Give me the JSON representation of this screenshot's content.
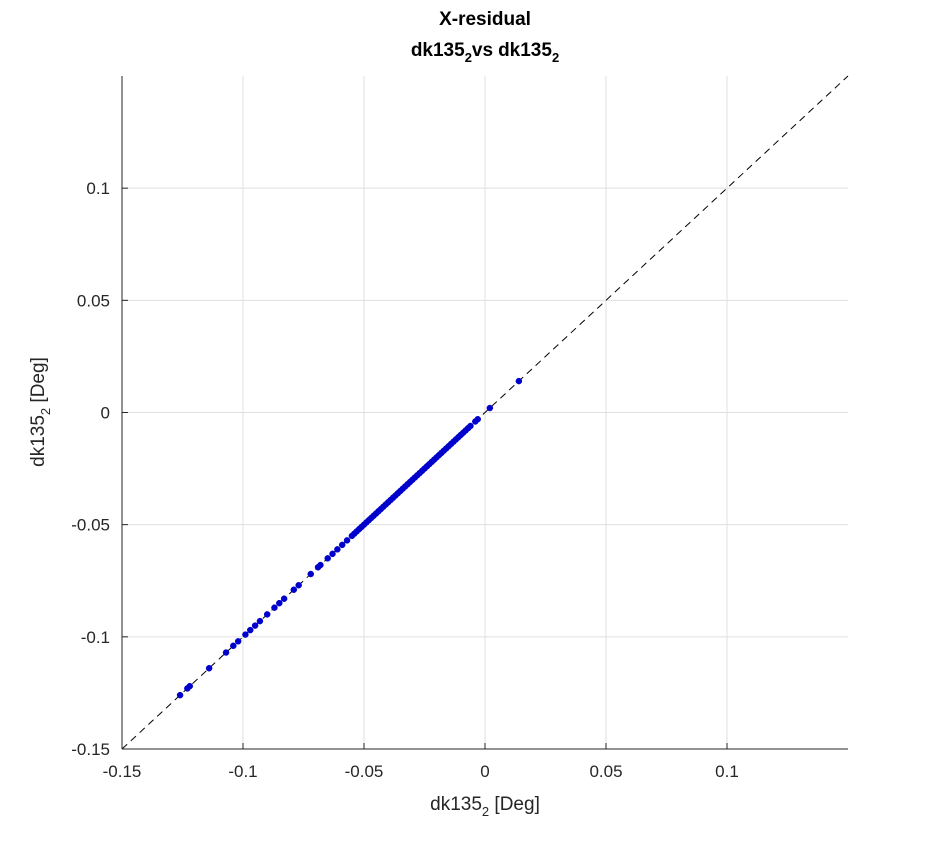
{
  "chart_data": {
    "type": "scatter",
    "title": "X-residual",
    "subtitle_parts": {
      "base1": "dk135",
      "sub1": "2",
      "mid": "vs",
      "base2": "dk135",
      "sub2": "2"
    },
    "xlabel_parts": {
      "base": "dk135",
      "sub": "2",
      "rest": " [Deg]"
    },
    "ylabel_parts": {
      "base": "dk135",
      "sub": "2",
      "rest": " [Deg]"
    },
    "xlim": [
      -0.15,
      0.15
    ],
    "ylim": [
      -0.15,
      0.15
    ],
    "xticks": [
      -0.15,
      -0.1,
      -0.05,
      0,
      0.05,
      0.1
    ],
    "yticks": [
      -0.15,
      -0.1,
      -0.05,
      0,
      0.05,
      0.1
    ],
    "xtick_labels": [
      "-0.15",
      "-0.1",
      "-0.05",
      "0",
      "0.05",
      "0.1"
    ],
    "ytick_labels": [
      "-0.15",
      "-0.1",
      "-0.05",
      "0",
      "0.05",
      "0.1"
    ],
    "grid": true,
    "reference_line": "y = x (dashed)",
    "point_color": "#0000cc",
    "dense_segment": {
      "from": -0.055,
      "to": -0.006,
      "step": 0.001
    },
    "points": [
      [
        -0.126,
        -0.126
      ],
      [
        -0.123,
        -0.123
      ],
      [
        -0.122,
        -0.122
      ],
      [
        -0.114,
        -0.114
      ],
      [
        -0.107,
        -0.107
      ],
      [
        -0.104,
        -0.104
      ],
      [
        -0.102,
        -0.102
      ],
      [
        -0.099,
        -0.099
      ],
      [
        -0.097,
        -0.097
      ],
      [
        -0.095,
        -0.095
      ],
      [
        -0.093,
        -0.093
      ],
      [
        -0.09,
        -0.09
      ],
      [
        -0.087,
        -0.087
      ],
      [
        -0.085,
        -0.085
      ],
      [
        -0.083,
        -0.083
      ],
      [
        -0.079,
        -0.079
      ],
      [
        -0.077,
        -0.077
      ],
      [
        -0.072,
        -0.072
      ],
      [
        -0.069,
        -0.069
      ],
      [
        -0.068,
        -0.068
      ],
      [
        -0.065,
        -0.065
      ],
      [
        -0.063,
        -0.063
      ],
      [
        -0.061,
        -0.061
      ],
      [
        -0.059,
        -0.059
      ],
      [
        -0.057,
        -0.057
      ],
      [
        -0.004,
        -0.004
      ],
      [
        -0.003,
        -0.003
      ],
      [
        0.002,
        0.002
      ],
      [
        0.014,
        0.014
      ]
    ]
  }
}
